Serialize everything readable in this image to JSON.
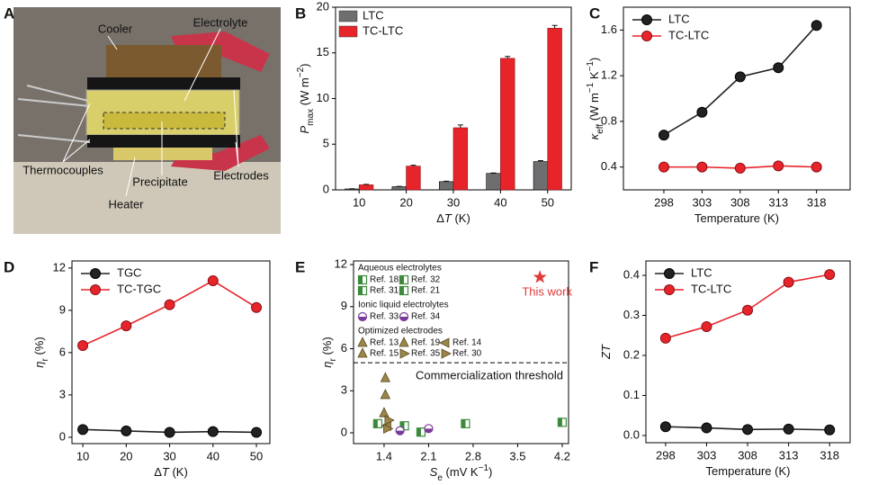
{
  "photo": {
    "panel": "A",
    "labels": [
      "Cooler",
      "Electrolyte",
      "Thermocouples",
      "Precipitate",
      "Electrodes",
      "Heater"
    ]
  },
  "chart_data": [
    {
      "panel": "B",
      "type": "bar",
      "categories": [
        "10",
        "20",
        "30",
        "40",
        "50"
      ],
      "series": [
        {
          "name": "LTC",
          "color": "#6d6e70",
          "values": [
            0.1,
            0.35,
            0.9,
            1.8,
            3.1
          ],
          "errors": [
            0.02,
            0.03,
            0.05,
            0.05,
            0.1
          ]
        },
        {
          "name": "TC-LTC",
          "color": "#e8242b",
          "values": [
            0.55,
            2.6,
            6.8,
            14.4,
            17.7
          ],
          "errors": [
            0.05,
            0.1,
            0.3,
            0.2,
            0.3
          ]
        }
      ],
      "ylim": [
        0,
        20
      ],
      "yticks": [
        0,
        5,
        10,
        15,
        20
      ],
      "xlabel": [
        "Δ",
        "T",
        " (K)"
      ],
      "ylabel": [
        "P",
        "max",
        " (W m",
        "−2",
        ")"
      ],
      "legend": "upper left"
    },
    {
      "panel": "C",
      "type": "line",
      "x": [
        298,
        303,
        308,
        313,
        318
      ],
      "series": [
        {
          "name": "LTC",
          "color": "#222222",
          "values": [
            0.68,
            0.88,
            1.19,
            1.27,
            1.64
          ]
        },
        {
          "name": "TC-LTC",
          "color": "#e8242b",
          "values": [
            0.4,
            0.4,
            0.39,
            0.41,
            0.4
          ]
        }
      ],
      "xlim": [
        292.7,
        322.4
      ],
      "xticks": [
        298,
        303,
        308,
        313,
        318
      ],
      "ylim": [
        0.2,
        1.8
      ],
      "yticks": [
        0.4,
        0.8,
        1.2,
        1.6
      ],
      "xlabel": [
        "Temperature (K)"
      ],
      "ylabel": [
        "κ",
        "eff",
        " (W m",
        "−1",
        " K",
        "−1",
        ")"
      ],
      "legend": "upper left"
    },
    {
      "panel": "D",
      "type": "line",
      "x": [
        10,
        20,
        30,
        40,
        50
      ],
      "series": [
        {
          "name": "TGC",
          "color": "#222222",
          "values": [
            0.55,
            0.45,
            0.35,
            0.4,
            0.35
          ]
        },
        {
          "name": "TC-TGC",
          "color": "#e8242b",
          "values": [
            6.5,
            7.9,
            9.4,
            11.1,
            9.2
          ]
        }
      ],
      "xlim": [
        7.5,
        53.1
      ],
      "xticks": [
        10,
        20,
        30,
        40,
        50
      ],
      "ylim": [
        -0.45,
        12.5
      ],
      "yticks": [
        0,
        3,
        6,
        9,
        12
      ],
      "xlabel": [
        "Δ",
        "T",
        " (K)"
      ],
      "ylabel": [
        "η",
        "r",
        " (%)"
      ],
      "legend": "upper left"
    },
    {
      "panel": "E",
      "type": "scatter",
      "groups": [
        {
          "title": "Aqueous electrolytes",
          "color": "#3a8a3a",
          "series": [
            {
              "name": "Ref. 18",
              "shape": "half-square",
              "x": [
                1.3
              ],
              "values": [
                0.65
              ]
            },
            {
              "name": "Ref. 32",
              "shape": "half-square",
              "x": [
                1.72
              ],
              "values": [
                0.5
              ]
            },
            {
              "name": "Ref. 31",
              "shape": "half-square",
              "x": [
                1.98
              ],
              "values": [
                0.05
              ]
            },
            {
              "name": "Ref. 21",
              "shape": "half-square",
              "x": [
                2.68,
                4.2
              ],
              "values": [
                0.65,
                0.75
              ]
            }
          ]
        },
        {
          "title": "Ionic liquid electrolytes",
          "color": "#7a3a9a",
          "series": [
            {
              "name": "Ref. 33",
              "shape": "half-circle",
              "x": [
                1.65
              ],
              "values": [
                0.15
              ]
            },
            {
              "name": "Ref. 34",
              "shape": "half-circle",
              "x": [
                2.1
              ],
              "values": [
                0.3
              ]
            }
          ]
        },
        {
          "title": "Optimized electrodes",
          "color": "#9a8648",
          "series": [
            {
              "name": "Ref. 13",
              "shape": "triangle-up",
              "x": [
                1.42
              ],
              "values": [
                3.9
              ]
            },
            {
              "name": "Ref. 19",
              "shape": "triangle-up",
              "x": [
                1.42
              ],
              "values": [
                2.7
              ]
            },
            {
              "name": "Ref. 14",
              "shape": "triangle-left",
              "x": [
                1.45
              ],
              "values": [
                0.5
              ]
            },
            {
              "name": "Ref. 15",
              "shape": "triangle-up",
              "x": [
                1.4
              ],
              "values": [
                1.4
              ]
            },
            {
              "name": "Ref. 35",
              "shape": "triangle-right",
              "x": [
                1.47
              ],
              "values": [
                0.9
              ]
            },
            {
              "name": "Ref. 30",
              "shape": "triangle-right",
              "x": [
                1.45
              ],
              "values": [
                0.3
              ]
            }
          ]
        }
      ],
      "highlight": {
        "name": "This work",
        "color": "#e03a3a",
        "x": [
          3.85
        ],
        "values": [
          11.1
        ]
      },
      "threshold": {
        "label": "Commercialization threshold",
        "value": 5
      },
      "xlim": [
        0.92,
        4.3
      ],
      "xticks": [
        1.4,
        2.1,
        2.8,
        3.5,
        4.2
      ],
      "ylim": [
        -0.77,
        12.26
      ],
      "yticks": [
        0,
        3,
        6,
        9,
        12
      ],
      "xlabel": [
        "S",
        "e",
        " (mV K",
        "−1",
        ")"
      ],
      "ylabel": [
        "η",
        "r",
        " (%)"
      ]
    },
    {
      "panel": "F",
      "type": "line",
      "x": [
        298,
        303,
        308,
        313,
        318
      ],
      "series": [
        {
          "name": "LTC",
          "color": "#222222",
          "values": [
            0.022,
            0.019,
            0.015,
            0.016,
            0.014
          ]
        },
        {
          "name": "TC-LTC",
          "color": "#e8242b",
          "values": [
            0.243,
            0.272,
            0.313,
            0.383,
            0.402
          ]
        }
      ],
      "xlim": [
        295.6,
        320.5
      ],
      "xticks": [
        298,
        303,
        308,
        313,
        318
      ],
      "ylim": [
        -0.018,
        0.436
      ],
      "yticks": [
        {
          "value": 0,
          "label": "0.0"
        },
        0.1,
        0.2,
        0.3,
        0.4
      ],
      "xlabel": [
        "Temperature (K)"
      ],
      "ylabel": [
        "ZT"
      ],
      "legend": "upper left"
    }
  ]
}
